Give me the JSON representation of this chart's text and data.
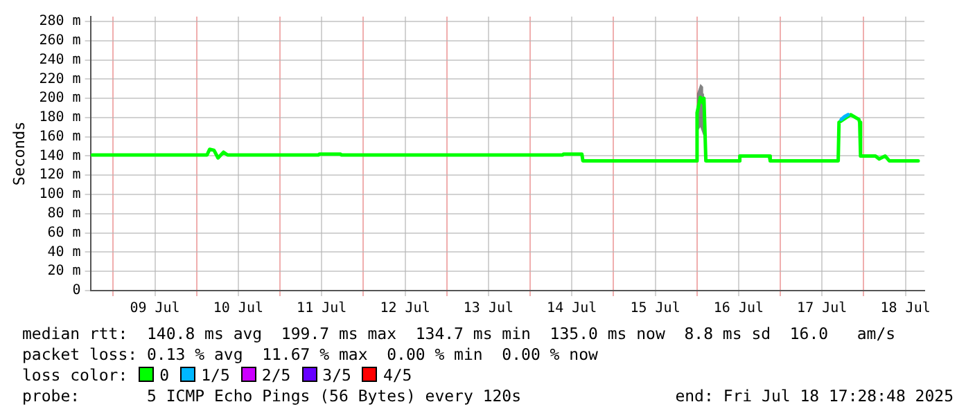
{
  "chart_data": {
    "type": "line",
    "ylabel": "Seconds",
    "xlim": [
      "2025-07-08T17:28",
      "2025-07-18T17:28"
    ],
    "xticks": [
      {
        "value": "2025-07-09T00:00",
        "label": null
      },
      {
        "value": "2025-07-09T12:00",
        "label": "09 Jul"
      },
      {
        "value": "2025-07-10T00:00",
        "label": null
      },
      {
        "value": "2025-07-10T12:00",
        "label": "10 Jul"
      },
      {
        "value": "2025-07-11T00:00",
        "label": null
      },
      {
        "value": "2025-07-11T12:00",
        "label": "11 Jul"
      },
      {
        "value": "2025-07-12T00:00",
        "label": null
      },
      {
        "value": "2025-07-12T12:00",
        "label": "12 Jul"
      },
      {
        "value": "2025-07-13T00:00",
        "label": null
      },
      {
        "value": "2025-07-13T12:00",
        "label": "13 Jul"
      },
      {
        "value": "2025-07-14T00:00",
        "label": null
      },
      {
        "value": "2025-07-14T12:00",
        "label": "14 Jul"
      },
      {
        "value": "2025-07-15T00:00",
        "label": null
      },
      {
        "value": "2025-07-15T12:00",
        "label": "15 Jul"
      },
      {
        "value": "2025-07-16T00:00",
        "label": null
      },
      {
        "value": "2025-07-16T12:00",
        "label": "16 Jul"
      },
      {
        "value": "2025-07-17T00:00",
        "label": null
      },
      {
        "value": "2025-07-17T12:00",
        "label": "17 Jul"
      },
      {
        "value": "2025-07-18T00:00",
        "label": null
      },
      {
        "value": "2025-07-18T12:00",
        "label": "18 Jul"
      }
    ],
    "ylim": [
      0,
      285
    ],
    "yticks": [
      {
        "value": 0,
        "label": "0"
      },
      {
        "value": 20,
        "label": "20 m"
      },
      {
        "value": 40,
        "label": "40 m"
      },
      {
        "value": 60,
        "label": "60 m"
      },
      {
        "value": 80,
        "label": "80 m"
      },
      {
        "value": 100,
        "label": "100 m"
      },
      {
        "value": 120,
        "label": "120 m"
      },
      {
        "value": 140,
        "label": "140 m"
      },
      {
        "value": 160,
        "label": "160 m"
      },
      {
        "value": 180,
        "label": "180 m"
      },
      {
        "value": 200,
        "label": "200 m"
      },
      {
        "value": 220,
        "label": "220 m"
      },
      {
        "value": 240,
        "label": "240 m"
      },
      {
        "value": 260,
        "label": "260 m"
      },
      {
        "value": 280,
        "label": "280 m"
      }
    ],
    "grid": true,
    "legend": "bottom",
    "legend_title": "loss color:",
    "marker": "none",
    "line_style": "solid",
    "series": [
      {
        "name": "0",
        "color": "#00ff00",
        "x": [
          "2025-07-08T18:00",
          "2025-07-10T03:00",
          "2025-07-10T03:45",
          "2025-07-10T05:00",
          "2025-07-10T06:10",
          "2025-07-10T07:45",
          "2025-07-10T08:55",
          "2025-07-11T11:05",
          "2025-07-11T11:20",
          "2025-07-11T17:25",
          "2025-07-11T17:40",
          "2025-07-14T09:20",
          "2025-07-14T09:35",
          "2025-07-14T14:53",
          "2025-07-14T15:10",
          "2025-07-14T18:27",
          "2025-07-15T23:48",
          "2025-07-16T00:02",
          "2025-07-16T00:59",
          "2025-07-16T01:47",
          "2025-07-16T02:01",
          "2025-07-16T02:34",
          "2025-07-16T12:06",
          "2025-07-16T12:20",
          "2025-07-16T20:50",
          "2025-07-16T21:05",
          "2025-07-17T16:39",
          "2025-07-17T16:53",
          "2025-07-17T20:14",
          "2025-07-17T22:36",
          "2025-07-17T22:50",
          "2025-07-17T23:05",
          "2025-07-18T03:22",
          "2025-07-18T04:27",
          "2025-07-18T06:09",
          "2025-07-18T07:21",
          "2025-07-18T15:40"
        ],
        "values": [
          141,
          141,
          147,
          146,
          138,
          144,
          141,
          141,
          142,
          142,
          141,
          141,
          142,
          142,
          135,
          135,
          135,
          185,
          201,
          195,
          200,
          135,
          135,
          140,
          140,
          135,
          135,
          175,
          183,
          178,
          175,
          140,
          140,
          137,
          140,
          135,
          135
        ],
        "lower": [
          141,
          141,
          147,
          146,
          138,
          144,
          141,
          141,
          142,
          142,
          141,
          141,
          142,
          142,
          135,
          135,
          135,
          165,
          170,
          162,
          165,
          135,
          135,
          140,
          140,
          135,
          135,
          175,
          183,
          178,
          175,
          140,
          140,
          137,
          140,
          135,
          135
        ],
        "upper": [
          141,
          141,
          147,
          146,
          138,
          144,
          141,
          141,
          142,
          142,
          141,
          141,
          142,
          142,
          135,
          135,
          135,
          205,
          215,
          212,
          205,
          135,
          135,
          140,
          140,
          135,
          135,
          175,
          183,
          178,
          175,
          140,
          140,
          137,
          140,
          135,
          135
        ]
      },
      {
        "name": "1/5",
        "color": "#00b8ff",
        "x": [
          "2025-07-17T17:30",
          "2025-07-17T18:30",
          "2025-07-17T19:30"
        ],
        "values": [
          178,
          181,
          183
        ]
      },
      {
        "name": "2/5",
        "color": "#cc00ff"
      },
      {
        "name": "3/5",
        "color": "#6600ff"
      },
      {
        "name": "4/5",
        "color": "#ff0000"
      }
    ],
    "annotations": [
      "median rtt:  140.8 ms avg  199.7 ms max  134.7 ms min  135.0 ms now  8.8 ms sd  16.0   am/s",
      "packet loss: 0.13 % avg  11.67 % max  0.00 % min  0.00 % now",
      "probe:       5 ICMP Echo Pings (56 Bytes) every 120s",
      "end: Fri Jul 18 17:28:48 2025"
    ]
  }
}
